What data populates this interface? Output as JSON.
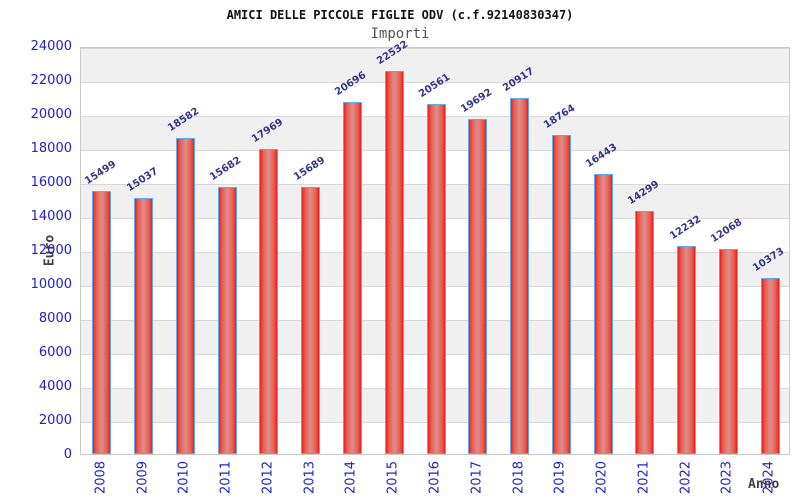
{
  "header": {
    "title": "AMICI DELLE PICCOLE FIGLIE ODV (c.f.92140830347)",
    "subtitle": "Importi"
  },
  "axes": {
    "y_label": "Euro",
    "x_label": "Anno"
  },
  "colors": {
    "axis_text": "#2020cc",
    "value_label": "#343489",
    "axis_title": "#404040",
    "bar_edge": "#e32222",
    "bar_mid": "#d98f8f",
    "bar_border": "#5ea9f5",
    "band": "#f0f0f0",
    "grid_line": "#d9d9d9",
    "plot_border": "#c9c9c9"
  },
  "chart_data": {
    "type": "bar",
    "title": "AMICI DELLE PICCOLE FIGLIE ODV (c.f.92140830347)",
    "subtitle": "Importi",
    "xlabel": "Anno",
    "ylabel": "Euro",
    "categories": [
      "2008",
      "2009",
      "2010",
      "2011",
      "2012",
      "2013",
      "2014",
      "2015",
      "2016",
      "2017",
      "2018",
      "2019",
      "2020",
      "2021",
      "2022",
      "2023",
      "2024"
    ],
    "values": [
      15499,
      15037,
      18582,
      15682,
      17969,
      15689,
      20696,
      22532,
      20561,
      19692,
      20917,
      18764,
      16443,
      14299,
      12232,
      12068,
      10373
    ],
    "ylim": [
      0,
      24000
    ],
    "ytick_step": 2000,
    "grid": "horizontal-bands-alternating",
    "legend": "none",
    "value_labels_rotated": true
  }
}
